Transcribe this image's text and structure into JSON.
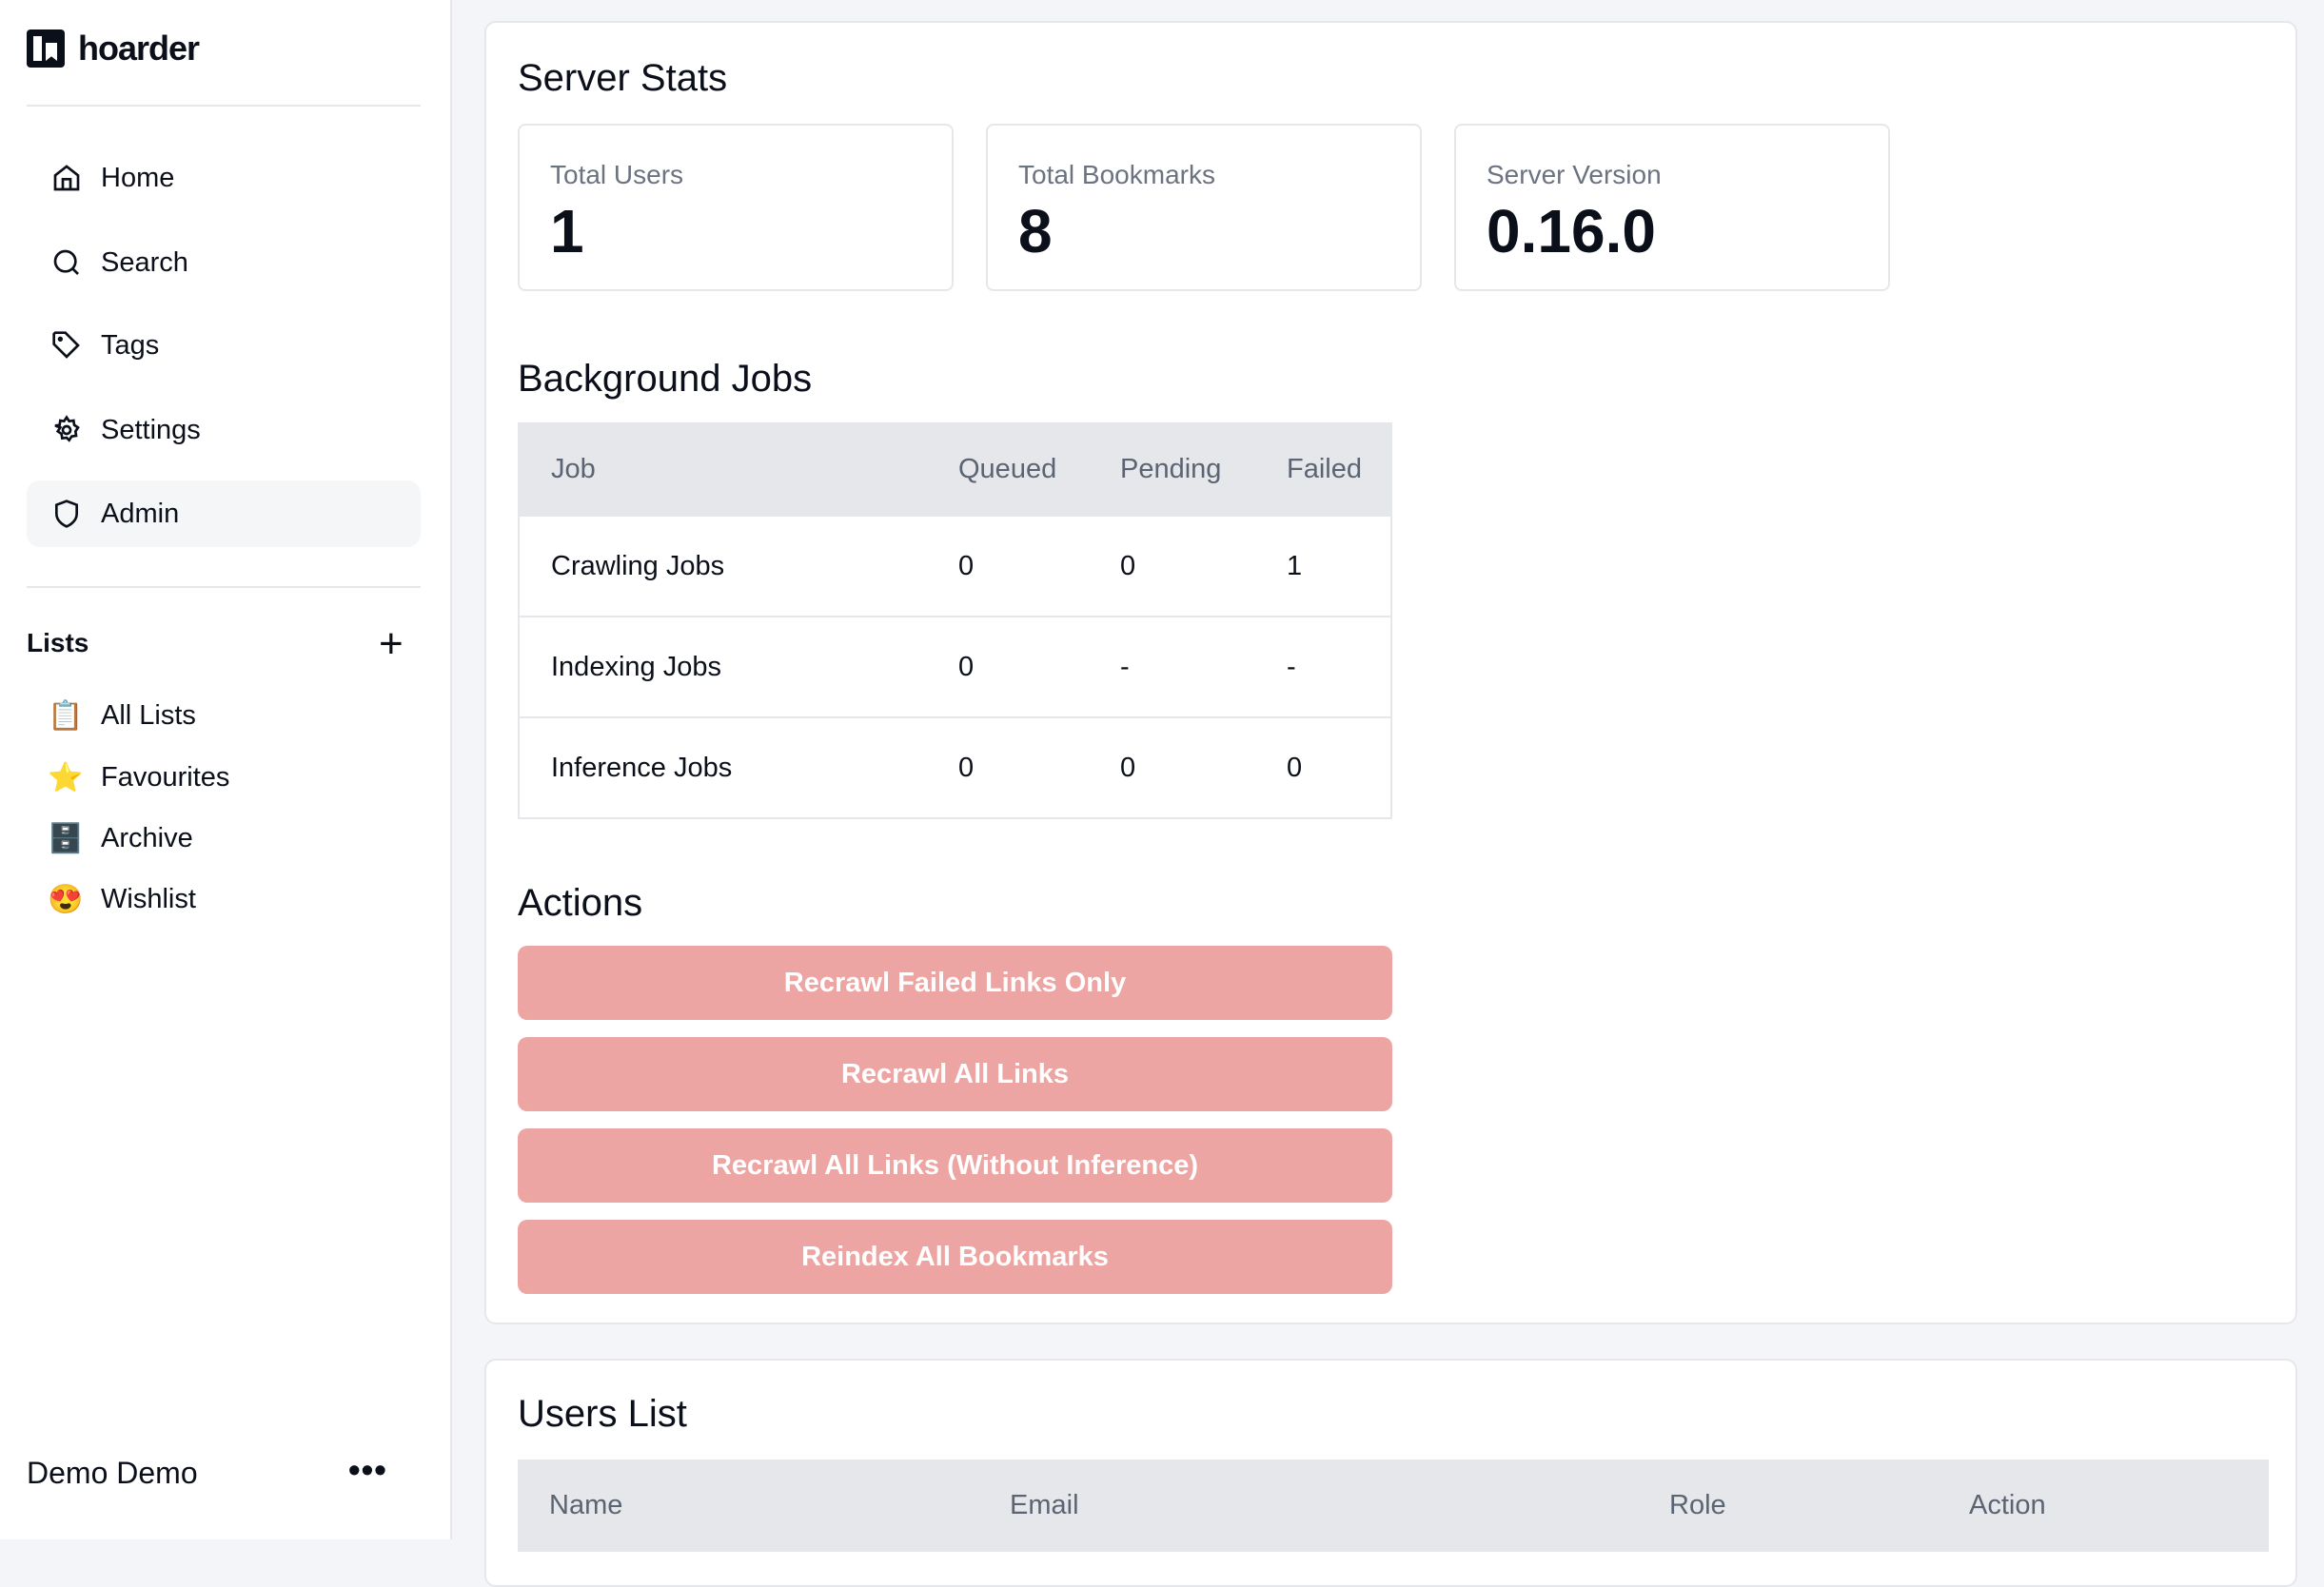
{
  "app": {
    "name": "hoarder"
  },
  "sidebar": {
    "items": [
      {
        "label": "Home",
        "icon": "home-icon"
      },
      {
        "label": "Search",
        "icon": "search-icon"
      },
      {
        "label": "Tags",
        "icon": "tag-icon"
      },
      {
        "label": "Settings",
        "icon": "gear-icon"
      },
      {
        "label": "Admin",
        "icon": "shield-icon",
        "active": true
      }
    ],
    "lists_title": "Lists",
    "lists": [
      {
        "label": "All Lists",
        "emoji": "📋"
      },
      {
        "label": "Favourites",
        "emoji": "⭐"
      },
      {
        "label": "Archive",
        "emoji": "🗄️"
      },
      {
        "label": "Wishlist",
        "emoji": "😍"
      }
    ],
    "user": "Demo Demo",
    "more": "•••"
  },
  "stats": {
    "title": "Server Stats",
    "items": [
      {
        "label": "Total Users",
        "value": "1"
      },
      {
        "label": "Total Bookmarks",
        "value": "8"
      },
      {
        "label": "Server Version",
        "value": "0.16.0"
      }
    ]
  },
  "jobs": {
    "title": "Background Jobs",
    "headers": [
      "Job",
      "Queued",
      "Pending",
      "Failed"
    ],
    "rows": [
      [
        "Crawling Jobs",
        "0",
        "0",
        "1"
      ],
      [
        "Indexing Jobs",
        "0",
        "-",
        "-"
      ],
      [
        "Inference Jobs",
        "0",
        "0",
        "0"
      ]
    ]
  },
  "actions": {
    "title": "Actions",
    "buttons": [
      "Recrawl Failed Links Only",
      "Recrawl All Links",
      "Recrawl All Links (Without Inference)",
      "Reindex All Bookmarks"
    ],
    "color": "#eda5a3"
  },
  "users": {
    "title": "Users List",
    "headers": [
      "Name",
      "Email",
      "Role",
      "Action"
    ]
  }
}
